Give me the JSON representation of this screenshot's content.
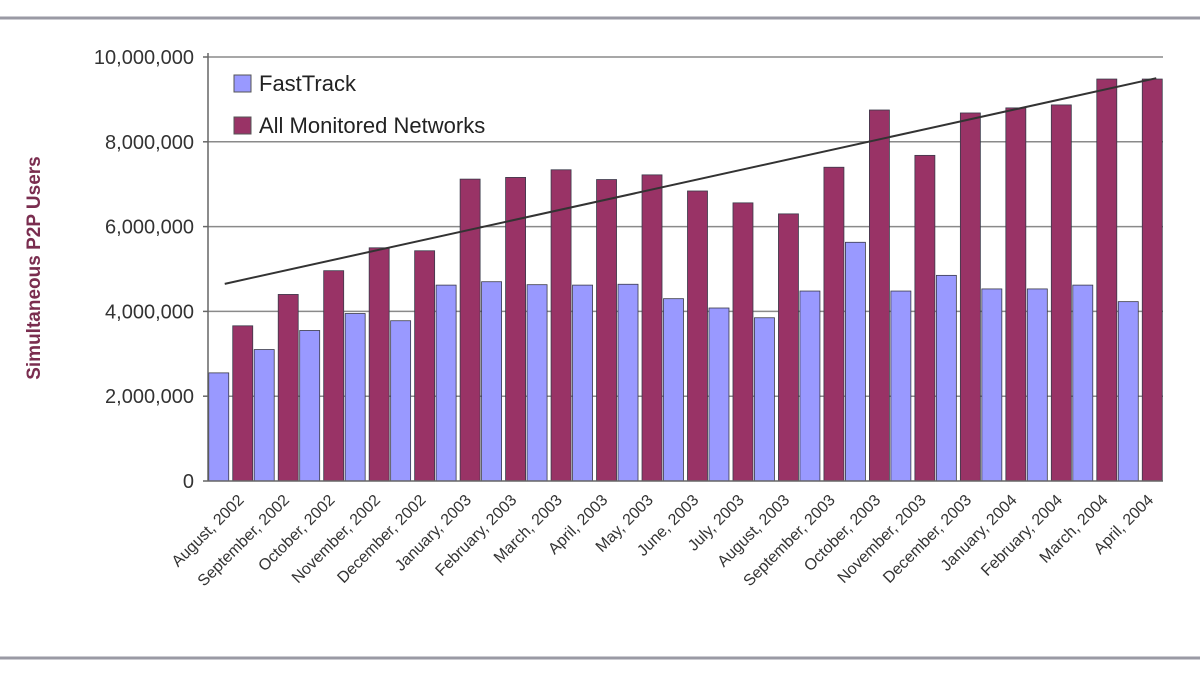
{
  "chart_data": {
    "type": "bar",
    "title": "",
    "xlabel": "",
    "ylabel": "Simultaneous P2P Users",
    "ylim": [
      0,
      10000000
    ],
    "yticks": [
      0,
      2000000,
      4000000,
      6000000,
      8000000,
      10000000
    ],
    "ytick_labels": [
      "0",
      "2,000,000",
      "4,000,000",
      "6,000,000",
      "8,000,000",
      "10,000,000"
    ],
    "grid": "horizontal",
    "legend_position": "top-left",
    "categories": [
      "August, 2002",
      "September, 2002",
      "October, 2002",
      "November, 2002",
      "December, 2002",
      "January, 2003",
      "February, 2003",
      "March, 2003",
      "April, 2003",
      "May, 2003",
      "June, 2003",
      "July, 2003",
      "August, 2003",
      "September, 2003",
      "October, 2003",
      "November, 2003",
      "December, 2003",
      "January, 2004",
      "February, 2004",
      "March, 2004",
      "April, 2004"
    ],
    "series": [
      {
        "name": "FastTrack",
        "color": "#9999ff",
        "values": [
          2550000,
          3100000,
          3550000,
          3950000,
          3780000,
          4620000,
          4700000,
          4630000,
          4620000,
          4640000,
          4300000,
          4080000,
          3850000,
          4480000,
          5630000,
          4480000,
          4850000,
          4530000,
          4530000,
          4620000,
          4230000
        ]
      },
      {
        "name": "All Monitored Networks",
        "color": "#993366",
        "values": [
          3660000,
          4400000,
          4960000,
          5500000,
          5430000,
          7120000,
          7160000,
          7340000,
          7110000,
          7220000,
          6840000,
          6560000,
          6300000,
          7400000,
          8750000,
          7680000,
          8680000,
          8800000,
          8870000,
          9480000,
          9480000
        ]
      }
    ],
    "trendline": {
      "type": "linear",
      "series": "All Monitored Networks",
      "start_value": 4650000,
      "end_value": 9500000
    }
  }
}
